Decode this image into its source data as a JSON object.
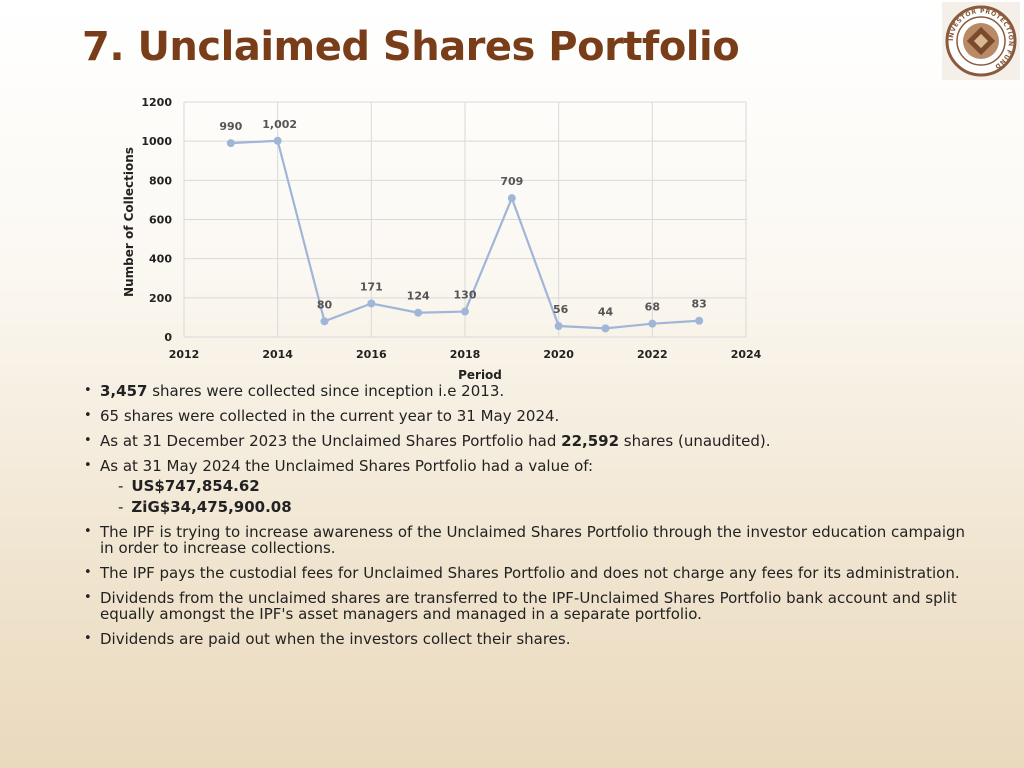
{
  "title": "7. Unclaimed Shares Portfolio",
  "colors": {
    "title": "#7a3d1a",
    "line": "#9fb6d8",
    "grid": "#d9d9d9",
    "logo_brown": "#8a5a3c"
  },
  "logo": {
    "text": "INVESTOR PROTECTION FUND"
  },
  "chart_data": {
    "type": "line",
    "xlabel": "Period",
    "ylabel": "Number of Collections",
    "xlim": [
      2012,
      2024
    ],
    "ylim": [
      0,
      1200
    ],
    "x_ticks": [
      2012,
      2014,
      2016,
      2018,
      2020,
      2022,
      2024
    ],
    "y_ticks": [
      0,
      200,
      400,
      600,
      800,
      1000,
      1200
    ],
    "grid": true,
    "series": [
      {
        "x": [
          2013,
          2014,
          2015,
          2016,
          2017,
          2018,
          2019,
          2020,
          2021,
          2022,
          2023
        ],
        "values": [
          990,
          1002,
          80,
          171,
          124,
          130,
          709,
          56,
          44,
          68,
          83
        ],
        "labels": [
          "990",
          "1,002",
          "80",
          "171",
          "124",
          "130",
          "709",
          "56",
          "44",
          "68",
          "83"
        ]
      }
    ]
  },
  "bullets": {
    "b1_bold": "3,457",
    "b1_rest": " shares were collected since inception i.e 2013.",
    "b2": "65 shares were collected in the current year to 31 May 2024.",
    "b3_pre": "As at 31 December 2023 the Unclaimed Shares Portfolio had ",
    "b3_bold": "22,592",
    "b3_post": " shares (unaudited).",
    "b4": "As at 31 May 2024 the Unclaimed Shares Portfolio had a value of:",
    "b4_sub": [
      "US$747,854.62",
      "ZiG$34,475,900.08"
    ],
    "b4_dash": "-",
    "b5": "The IPF is trying to increase awareness of the Unclaimed Shares Portfolio through the investor education campaign in order to increase collections.",
    "b6": "The IPF pays the custodial fees for Unclaimed Shares Portfolio and does not charge any fees for its administration.",
    "b7": "Dividends from the unclaimed shares are transferred to the IPF-Unclaimed Shares Portfolio bank account and split equally amongst the IPF's asset managers and managed in a separate portfolio.",
    "b8": "Dividends are paid out when the investors collect their shares."
  }
}
